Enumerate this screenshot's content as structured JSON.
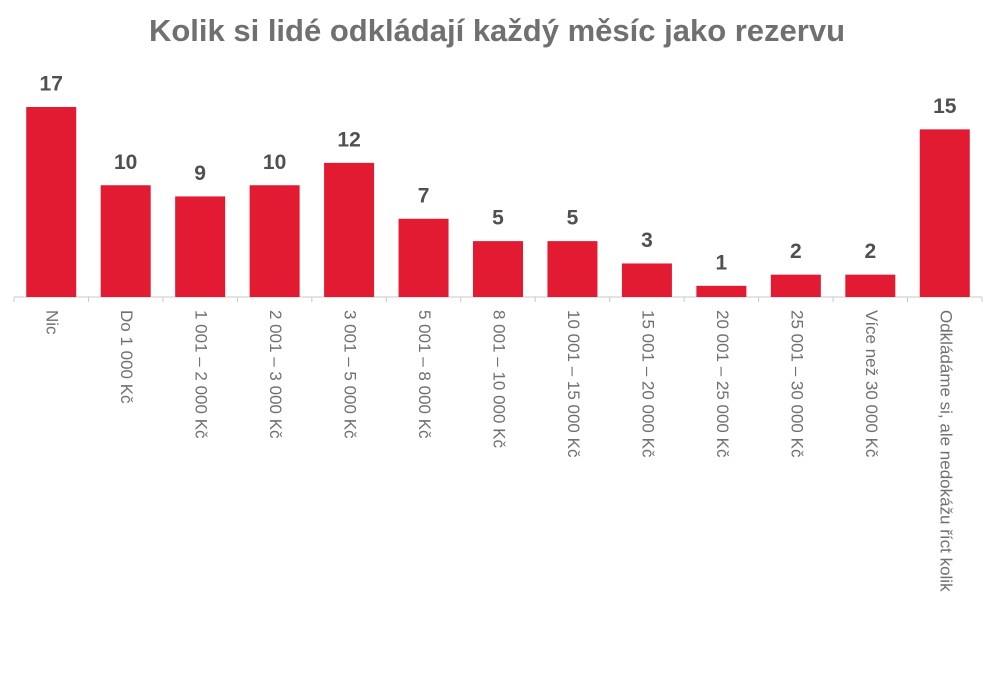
{
  "chart_data": {
    "type": "bar",
    "title": "Kolik si lidé odkládají každý měsíc jako rezervu",
    "categories": [
      "Nic",
      "Do 1 000 Kč",
      "1 001 – 2 000 Kč",
      "2 001 – 3 000 Kč",
      "3 001 – 5 000 Kč",
      "5 001 – 8 000 Kč",
      "8 001 – 10 000 Kč",
      "10 001 – 15 000 Kč",
      "15 001 – 20 000 Kč",
      "20 001 – 25 000 Kč",
      "25 001 – 30 000 Kč",
      "Více než 30 000 Kč",
      "Odkládáme si, ale nedokážu říct kolik"
    ],
    "values": [
      17,
      10,
      9,
      10,
      12,
      7,
      5,
      5,
      3,
      1,
      2,
      2,
      15
    ],
    "color": "#e31b32"
  }
}
